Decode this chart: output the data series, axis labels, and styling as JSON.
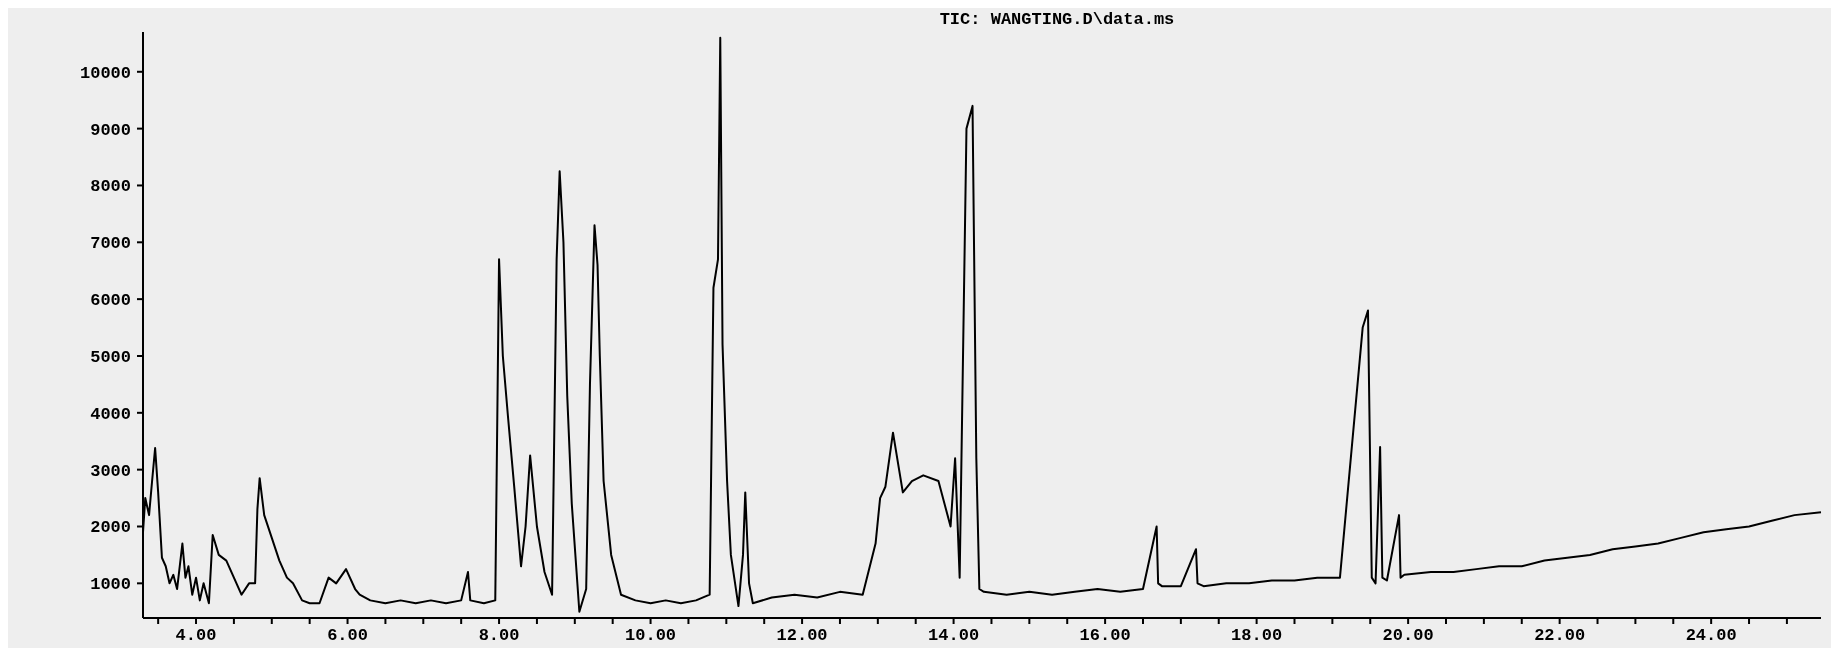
{
  "chart_data": {
    "type": "line",
    "title": "TIC:  WANGTING.D\\data.ms",
    "grid": false,
    "marker": "none",
    "line_style": "solid",
    "xlim": [
      3.3,
      25.45
    ],
    "ylim": [
      390,
      10700
    ],
    "xticks": [
      {
        "value": 3.5,
        "label": null
      },
      {
        "value": 4,
        "label": "4.00"
      },
      {
        "value": 4.5,
        "label": null
      },
      {
        "value": 5,
        "label": null
      },
      {
        "value": 5.5,
        "label": null
      },
      {
        "value": 6,
        "label": "6.00"
      },
      {
        "value": 6.5,
        "label": null
      },
      {
        "value": 7,
        "label": null
      },
      {
        "value": 7.5,
        "label": null
      },
      {
        "value": 8,
        "label": "8.00"
      },
      {
        "value": 8.5,
        "label": null
      },
      {
        "value": 9,
        "label": null
      },
      {
        "value": 9.5,
        "label": null
      },
      {
        "value": 10,
        "label": "10.00"
      },
      {
        "value": 10.5,
        "label": null
      },
      {
        "value": 11,
        "label": null
      },
      {
        "value": 11.5,
        "label": null
      },
      {
        "value": 12,
        "label": "12.00"
      },
      {
        "value": 12.5,
        "label": null
      },
      {
        "value": 13,
        "label": null
      },
      {
        "value": 13.5,
        "label": null
      },
      {
        "value": 14,
        "label": "14.00"
      },
      {
        "value": 14.5,
        "label": null
      },
      {
        "value": 15,
        "label": null
      },
      {
        "value": 15.5,
        "label": null
      },
      {
        "value": 16,
        "label": "16.00"
      },
      {
        "value": 16.5,
        "label": null
      },
      {
        "value": 17,
        "label": null
      },
      {
        "value": 17.5,
        "label": null
      },
      {
        "value": 18,
        "label": "18.00"
      },
      {
        "value": 18.5,
        "label": null
      },
      {
        "value": 19,
        "label": null
      },
      {
        "value": 19.5,
        "label": null
      },
      {
        "value": 20,
        "label": "20.00"
      },
      {
        "value": 20.5,
        "label": null
      },
      {
        "value": 21,
        "label": null
      },
      {
        "value": 21.5,
        "label": null
      },
      {
        "value": 22,
        "label": "22.00"
      },
      {
        "value": 22.5,
        "label": null
      },
      {
        "value": 23,
        "label": null
      },
      {
        "value": 23.5,
        "label": null
      },
      {
        "value": 24,
        "label": "24.00"
      },
      {
        "value": 24.5,
        "label": null
      },
      {
        "value": 25,
        "label": null
      }
    ],
    "yticks": [
      1000,
      2000,
      3000,
      4000,
      5000,
      6000,
      7000,
      8000,
      9000,
      10000
    ],
    "series": [
      {
        "color": "#000000",
        "x": [
          3.3,
          3.33,
          3.38,
          3.42,
          3.46,
          3.5,
          3.55,
          3.6,
          3.65,
          3.7,
          3.75,
          3.82,
          3.86,
          3.9,
          3.95,
          4.0,
          4.05,
          4.1,
          4.17,
          4.22,
          4.3,
          4.4,
          4.5,
          4.6,
          4.7,
          4.78,
          4.81,
          4.84,
          4.9,
          5.0,
          5.1,
          5.2,
          5.28,
          5.4,
          5.5,
          5.63,
          5.75,
          5.85,
          5.98,
          6.1,
          6.16,
          6.3,
          6.5,
          6.7,
          6.9,
          7.1,
          7.3,
          7.5,
          7.59,
          7.62,
          7.8,
          7.95,
          8.0,
          8.05,
          8.12,
          8.2,
          8.29,
          8.35,
          8.41,
          8.5,
          8.6,
          8.7,
          8.76,
          8.8,
          8.85,
          8.9,
          8.96,
          9.06,
          9.15,
          9.2,
          9.26,
          9.3,
          9.33,
          9.38,
          9.48,
          9.61,
          9.8,
          10.0,
          10.2,
          10.4,
          10.6,
          10.78,
          10.83,
          10.89,
          10.92,
          10.95,
          11.01,
          11.06,
          11.16,
          11.22,
          11.25,
          11.3,
          11.35,
          11.6,
          11.9,
          12.2,
          12.5,
          12.8,
          12.97,
          13.03,
          13.1,
          13.2,
          13.33,
          13.45,
          13.6,
          13.8,
          13.96,
          14.02,
          14.08,
          14.17,
          14.25,
          14.3,
          14.34,
          14.4,
          14.7,
          15.0,
          15.3,
          15.6,
          15.9,
          16.2,
          16.5,
          16.68,
          16.7,
          16.75,
          17.0,
          17.2,
          17.22,
          17.3,
          17.6,
          17.9,
          18.2,
          18.5,
          18.8,
          19.1,
          19.4,
          19.47,
          19.52,
          19.57,
          19.63,
          19.66,
          19.72,
          19.88,
          19.9,
          19.95,
          20.3,
          20.6,
          20.9,
          21.2,
          21.5,
          21.8,
          22.1,
          22.4,
          22.7,
          23.0,
          23.3,
          23.6,
          23.9,
          24.2,
          24.5,
          24.8,
          25.1,
          25.45
        ],
        "values": [
          1900,
          2500,
          2200,
          2800,
          3380,
          2600,
          1450,
          1300,
          1000,
          1150,
          900,
          1700,
          1100,
          1300,
          800,
          1100,
          700,
          1000,
          650,
          1850,
          1500,
          1400,
          1100,
          800,
          1000,
          1000,
          2300,
          2850,
          2200,
          1800,
          1400,
          1100,
          1000,
          700,
          650,
          650,
          1100,
          1000,
          1250,
          900,
          800,
          700,
          650,
          700,
          650,
          700,
          650,
          700,
          1200,
          700,
          650,
          700,
          6700,
          5000,
          3900,
          2700,
          1300,
          2000,
          3250,
          2000,
          1200,
          800,
          6700,
          8250,
          7000,
          4300,
          2400,
          500,
          900,
          4500,
          7300,
          6600,
          5000,
          2800,
          1500,
          800,
          700,
          650,
          700,
          650,
          700,
          800,
          6200,
          6700,
          10600,
          5200,
          2800,
          1500,
          600,
          1500,
          2600,
          1000,
          650,
          750,
          800,
          750,
          850,
          800,
          1700,
          2500,
          2700,
          3650,
          2600,
          2800,
          2900,
          2800,
          2000,
          3200,
          1100,
          9000,
          9400,
          3200,
          900,
          850,
          800,
          850,
          800,
          850,
          900,
          850,
          900,
          2000,
          1000,
          950,
          950,
          1600,
          1000,
          950,
          1000,
          1000,
          1050,
          1050,
          1100,
          1100,
          5500,
          5800,
          1100,
          1000,
          3400,
          1100,
          1050,
          2200,
          1100,
          1150,
          1200,
          1200,
          1250,
          1300,
          1300,
          1400,
          1450,
          1500,
          1600,
          1650,
          1700,
          1800,
          1900,
          1950,
          2000,
          2100,
          2200,
          2250
        ]
      }
    ]
  }
}
